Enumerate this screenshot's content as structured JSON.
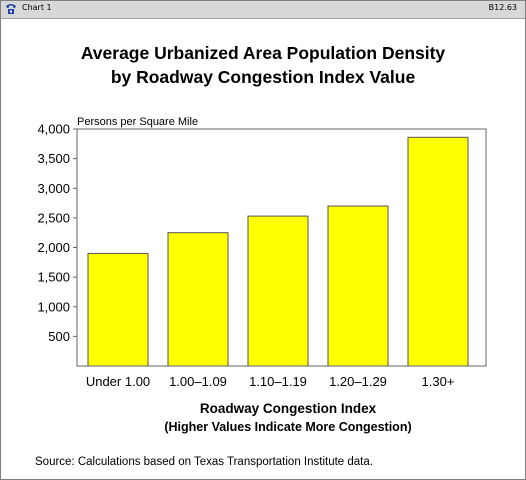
{
  "window": {
    "title": "Chart 1",
    "code": "B12.63",
    "icon": "phone-icon"
  },
  "chart_data": {
    "type": "bar",
    "title_lines": [
      "Average Urbanized Area Population Density",
      "by Roadway Congestion Index Value"
    ],
    "unit_label": "Persons per Square Mile",
    "xlabel": "Roadway Congestion Index",
    "xlabel_sub": "(Higher Values Indicate More Congestion)",
    "categories": [
      "Under 1.00",
      "1.00–1.09",
      "1.10–1.19",
      "1.20–1.29",
      "1.30+"
    ],
    "values": [
      1900,
      2250,
      2530,
      2700,
      3860
    ],
    "ylim": [
      0,
      4000
    ],
    "y_ticks": [
      500,
      1000,
      1500,
      2000,
      2500,
      3000,
      3500,
      4000
    ],
    "y_tick_labels": [
      "500",
      "1,000",
      "1,500",
      "2,000",
      "2,500",
      "3,000",
      "3,500",
      "4,000"
    ],
    "bar_color": "#ffff00",
    "bar_stroke": "#555555",
    "grid": false,
    "legend": "none",
    "source": "Source: Calculations based on Texas Transportation Institute data."
  }
}
